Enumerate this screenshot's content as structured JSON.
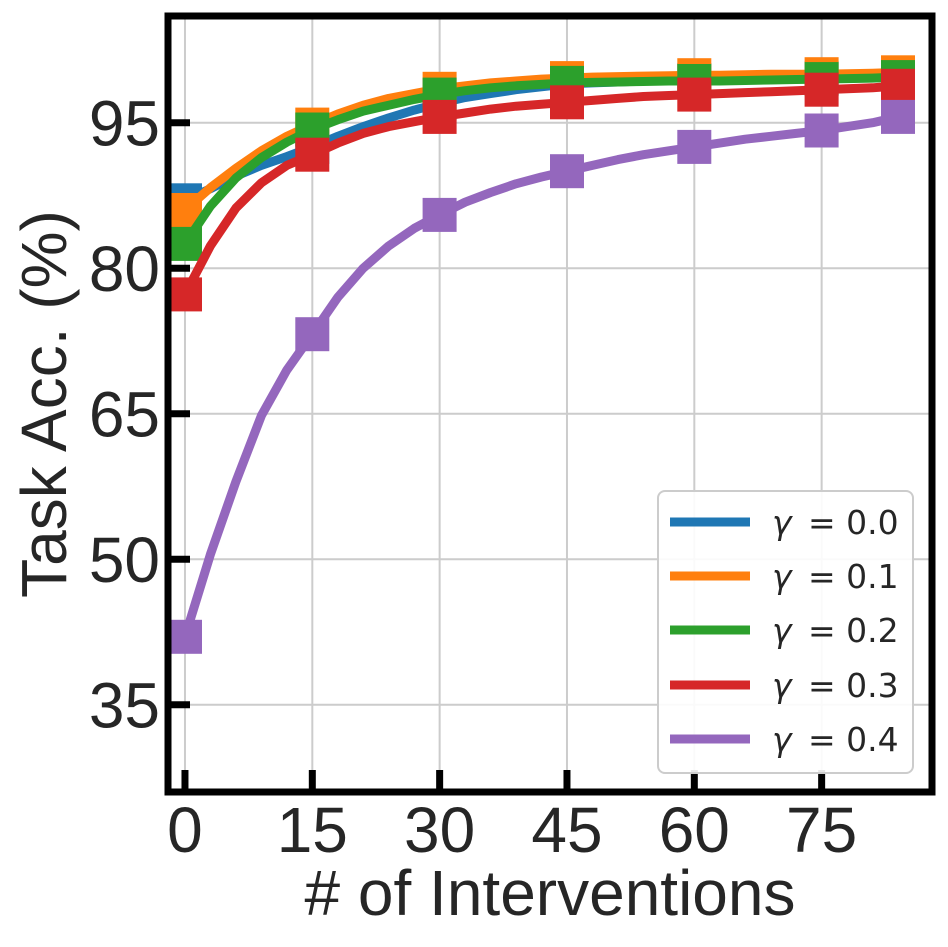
{
  "chart_data": {
    "type": "line",
    "title": "",
    "xlabel": "# of Interventions",
    "ylabel": "Task Acc. (%)",
    "xlim": [
      -2,
      88
    ],
    "ylim": [
      26,
      106
    ],
    "xticks": [
      0,
      15,
      30,
      45,
      60,
      75
    ],
    "xtick_labels": [
      "0",
      "15",
      "30",
      "45",
      "60",
      "75"
    ],
    "yticks": [
      35,
      50,
      65,
      80,
      95
    ],
    "ytick_labels": [
      "35",
      "50",
      "65",
      "80",
      "95"
    ],
    "grid": true,
    "legend_position": "lower-right",
    "line_x": [
      0,
      3,
      6,
      9,
      12,
      15,
      18,
      21,
      24,
      27,
      30,
      33,
      36,
      39,
      42,
      45,
      48,
      51,
      54,
      57,
      60,
      63,
      66,
      69,
      72,
      75,
      78,
      81,
      84
    ],
    "marker_x": [
      0,
      15,
      30,
      45,
      60,
      75,
      84
    ],
    "series": [
      {
        "name": "γ = 0.0",
        "legend_symbol": "γ",
        "legend_value": "= 0.0",
        "color": "#1f77b4",
        "values": [
          87.0,
          88.2,
          89.5,
          90.6,
          91.5,
          92.5,
          93.6,
          94.6,
          95.5,
          96.3,
          97.0,
          97.6,
          98.0,
          98.4,
          98.7,
          99.0,
          99.1,
          99.2,
          99.3,
          99.35,
          99.4,
          99.45,
          99.5,
          99.5,
          99.55,
          99.6,
          99.65,
          99.7,
          99.8
        ],
        "marker_values": [
          87.0,
          92.5,
          97.0,
          99.0,
          99.4,
          99.6,
          99.8
        ]
      },
      {
        "name": "γ = 0.1",
        "legend_symbol": "γ",
        "legend_value": "= 0.1",
        "color": "#ff7f0e",
        "values": [
          86.0,
          88.3,
          90.3,
          92.1,
          93.6,
          94.8,
          95.9,
          96.8,
          97.5,
          98.0,
          98.5,
          98.8,
          99.1,
          99.3,
          99.5,
          99.6,
          99.7,
          99.75,
          99.8,
          99.85,
          99.9,
          99.9,
          99.95,
          100.0,
          100.0,
          100.0,
          100.05,
          100.1,
          100.2
        ],
        "marker_values": [
          86.0,
          94.8,
          98.5,
          99.6,
          99.9,
          100.0,
          100.2
        ]
      },
      {
        "name": "γ = 0.2",
        "legend_symbol": "γ",
        "legend_value": "= 0.2",
        "color": "#2ca02c",
        "values": [
          82.5,
          86.4,
          89.3,
          91.4,
          93.0,
          94.3,
          95.3,
          96.2,
          96.8,
          97.4,
          97.9,
          98.3,
          98.6,
          98.8,
          98.95,
          99.1,
          99.15,
          99.2,
          99.25,
          99.3,
          99.3,
          99.3,
          99.35,
          99.4,
          99.45,
          99.5,
          99.55,
          99.6,
          99.7
        ],
        "marker_values": [
          82.5,
          94.3,
          97.9,
          99.1,
          99.3,
          99.5,
          99.7
        ]
      },
      {
        "name": "γ = 0.3",
        "legend_symbol": "γ",
        "legend_value": "= 0.3",
        "color": "#d62728",
        "values": [
          77.3,
          82.3,
          86.2,
          88.8,
          90.6,
          91.7,
          92.9,
          93.9,
          94.6,
          95.1,
          95.6,
          96.0,
          96.4,
          96.7,
          96.9,
          97.1,
          97.3,
          97.5,
          97.7,
          97.8,
          97.9,
          98.0,
          98.1,
          98.2,
          98.3,
          98.4,
          98.5,
          98.6,
          98.8
        ],
        "marker_values": [
          77.3,
          91.7,
          95.6,
          97.1,
          97.9,
          98.4,
          98.8
        ]
      },
      {
        "name": "γ = 0.4",
        "legend_symbol": "γ",
        "legend_value": "= 0.4",
        "color": "#9467bd",
        "values": [
          42.0,
          50.5,
          58.0,
          64.8,
          69.5,
          73.2,
          77.0,
          80.0,
          82.3,
          84.1,
          85.5,
          86.8,
          87.8,
          88.7,
          89.4,
          90.0,
          90.6,
          91.2,
          91.7,
          92.1,
          92.5,
          92.9,
          93.3,
          93.6,
          93.9,
          94.2,
          94.6,
          95.0,
          95.6
        ],
        "marker_values": [
          42.0,
          73.2,
          85.5,
          90.0,
          92.5,
          94.2,
          95.6
        ]
      }
    ]
  }
}
